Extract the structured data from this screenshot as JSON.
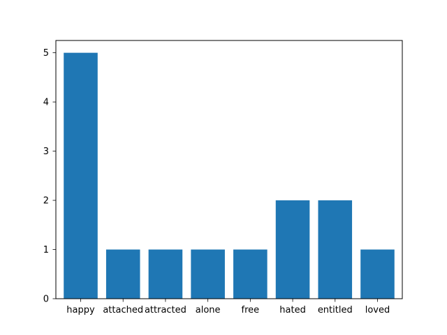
{
  "chart_data": {
    "type": "bar",
    "title": "",
    "xlabel": "",
    "ylabel": "",
    "categories": [
      "happy",
      "attached",
      "attracted",
      "alone",
      "free",
      "hated",
      "entitled",
      "loved"
    ],
    "values": [
      5,
      1,
      1,
      1,
      1,
      2,
      2,
      1
    ],
    "ylim": [
      0,
      5.25
    ],
    "yticks": [
      "0",
      "1",
      "2",
      "3",
      "4",
      "5"
    ],
    "bar_color": "#1f77b4",
    "grid": false,
    "legend": "none"
  }
}
